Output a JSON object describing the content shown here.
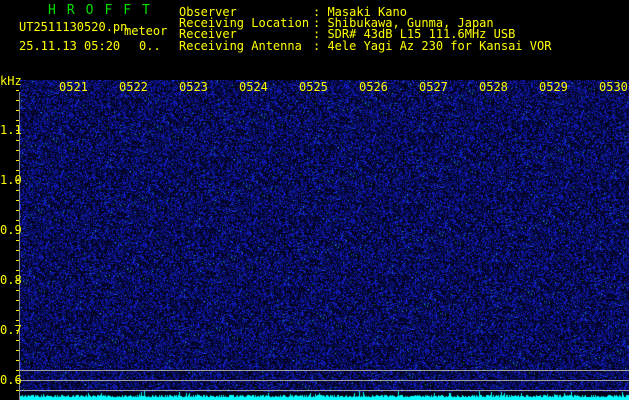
{
  "header": {
    "app_title": "HROFFT",
    "filename": "UT2511130520.pn",
    "mode": "meteor",
    "datetime": "25.11.13 05:20",
    "count": "0..",
    "info": [
      {
        "label": "Observer",
        "value": ": Masaki Kano"
      },
      {
        "label": "Receiving Location",
        "value": ": Shibukawa, Gunma, Japan"
      },
      {
        "label": "Receiver",
        "value": ": SDR# 43dB L15 111.6MHz USB"
      },
      {
        "label": "Receiving Antenna",
        "value": ": 4ele Yagi Az 230 for Kansai VOR"
      }
    ]
  },
  "spectrogram": {
    "y_unit": "kHz",
    "y_labels": [
      "1.1",
      "1.0",
      "0.9",
      "0.8",
      "0.7",
      "0.6"
    ],
    "time_labels": [
      "0521",
      "0522",
      "0523",
      "0524",
      "0525",
      "0526",
      "0527",
      "0528",
      "0529",
      "0530"
    ],
    "colors": {
      "background": "#000020",
      "noise": "#2020ff",
      "spectrum": "#00ffff",
      "text": "#ffff00",
      "title": "#00e000"
    }
  }
}
